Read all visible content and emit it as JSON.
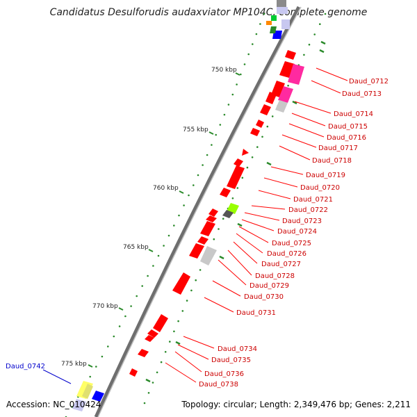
{
  "title": "Candidatus Desulforudis audaxviator MP104C, complete genome",
  "accession": "Accession: NC_010424",
  "summary": "Topology: circular; Length: 2,349,476 bp; Genes: 2,211",
  "scale_labels": [
    "750 kbp",
    "755 kbp",
    "760 kbp",
    "765 kbp",
    "770 kbp",
    "775 kbp"
  ],
  "colors": {
    "gene_red": "#ff0000",
    "gene_pink": "#ff2aa0",
    "gene_gray": "#c8c8c8",
    "gene_lime": "#99ff00",
    "gene_blue": "#0000ff",
    "gene_yellow": "#ffff66",
    "label_red": "#cc0000",
    "label_blue": "#0000cc",
    "dot_green": "#2a8a2a"
  },
  "gene_labels": [
    {
      "text": "Daud_0712",
      "color": "red"
    },
    {
      "text": "Daud_0713",
      "color": "red"
    },
    {
      "text": "Daud_0714",
      "color": "red"
    },
    {
      "text": "Daud_0715",
      "color": "red"
    },
    {
      "text": "Daud_0716",
      "color": "red"
    },
    {
      "text": "Daud_0717",
      "color": "red"
    },
    {
      "text": "Daud_0718",
      "color": "red"
    },
    {
      "text": "Daud_0719",
      "color": "red"
    },
    {
      "text": "Daud_0720",
      "color": "red"
    },
    {
      "text": "Daud_0721",
      "color": "red"
    },
    {
      "text": "Daud_0722",
      "color": "red"
    },
    {
      "text": "Daud_0723",
      "color": "red"
    },
    {
      "text": "Daud_0724",
      "color": "red"
    },
    {
      "text": "Daud_0725",
      "color": "red"
    },
    {
      "text": "Daud_0726",
      "color": "red"
    },
    {
      "text": "Daud_0727",
      "color": "red"
    },
    {
      "text": "Daud_0728",
      "color": "red"
    },
    {
      "text": "Daud_0729",
      "color": "red"
    },
    {
      "text": "Daud_0730",
      "color": "red"
    },
    {
      "text": "Daud_0731",
      "color": "red"
    },
    {
      "text": "Daud_0734",
      "color": "red"
    },
    {
      "text": "Daud_0735",
      "color": "red"
    },
    {
      "text": "Daud_0736",
      "color": "red"
    },
    {
      "text": "Daud_0738",
      "color": "red"
    },
    {
      "text": "Daud_0742",
      "color": "blue"
    }
  ]
}
